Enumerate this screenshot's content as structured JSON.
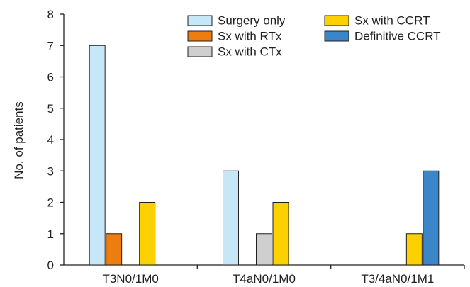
{
  "chart_data": {
    "type": "bar",
    "ylabel": "No. of patients",
    "xlabel": "",
    "ylim": [
      0,
      8
    ],
    "yticks": [
      0,
      1,
      2,
      3,
      4,
      5,
      6,
      7,
      8
    ],
    "categories": [
      "T3N0/1M0",
      "T4aN0/1M0",
      "T3/4aN0/1M1"
    ],
    "grid": false,
    "legend_position": "top-right",
    "series": [
      {
        "name": "Surgery only",
        "color": "#c6e7f7",
        "values": [
          7,
          3,
          0
        ]
      },
      {
        "name": "Sx with RTx",
        "color": "#ee7d0f",
        "values": [
          1,
          0,
          0
        ]
      },
      {
        "name": "Sx with CTx",
        "color": "#cfcfcf",
        "values": [
          0,
          1,
          0
        ]
      },
      {
        "name": "Sx with CCRT",
        "color": "#fdd000",
        "values": [
          2,
          2,
          1
        ]
      },
      {
        "name": "Definitive CCRT",
        "color": "#3b86c8",
        "values": [
          0,
          0,
          3
        ]
      }
    ]
  }
}
